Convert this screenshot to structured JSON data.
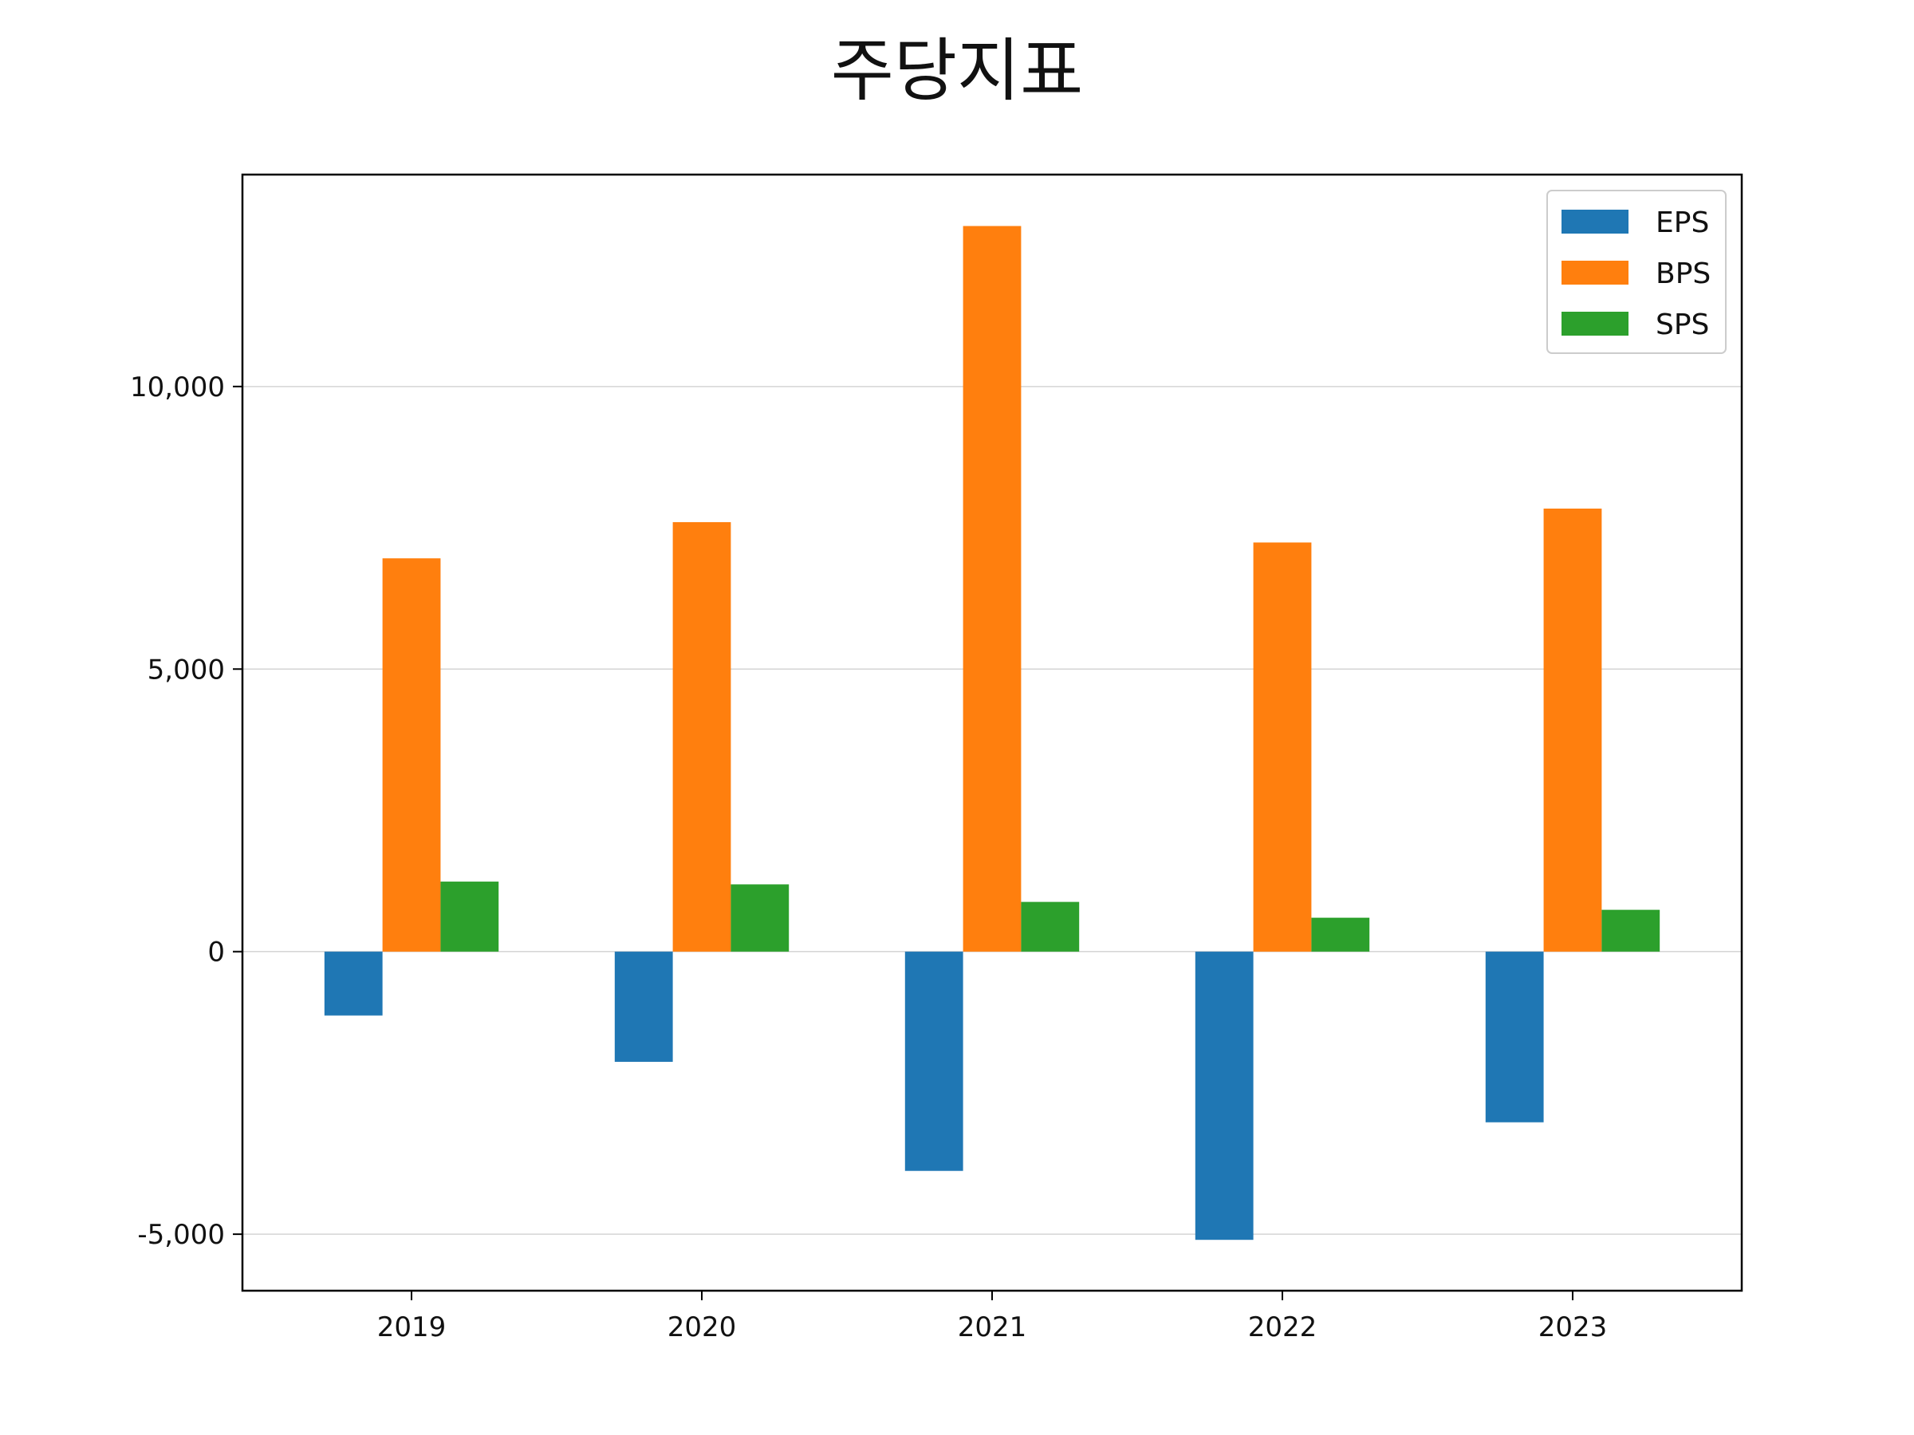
{
  "chart_data": {
    "type": "bar",
    "title": "주당지표",
    "xlabel": "",
    "ylabel": "",
    "categories": [
      "2019",
      "2020",
      "2021",
      "2022",
      "2023"
    ],
    "series": [
      {
        "name": "EPS",
        "color": "#1f77b4",
        "values": [
          -1130,
          -1950,
          -3880,
          -5100,
          -3020
        ]
      },
      {
        "name": "BPS",
        "color": "#ff7f0e",
        "values": [
          6960,
          7600,
          12840,
          7240,
          7840
        ]
      },
      {
        "name": "SPS",
        "color": "#2ca02c",
        "values": [
          1240,
          1190,
          880,
          600,
          740
        ]
      }
    ],
    "ylim": [
      -6000,
      13750
    ],
    "yticks": [
      -5000,
      0,
      5000,
      10000
    ],
    "ytick_labels": [
      "-5,000",
      "0",
      "5,000",
      "10,000"
    ],
    "grid": "horizontal",
    "legend_position": "top-right"
  }
}
